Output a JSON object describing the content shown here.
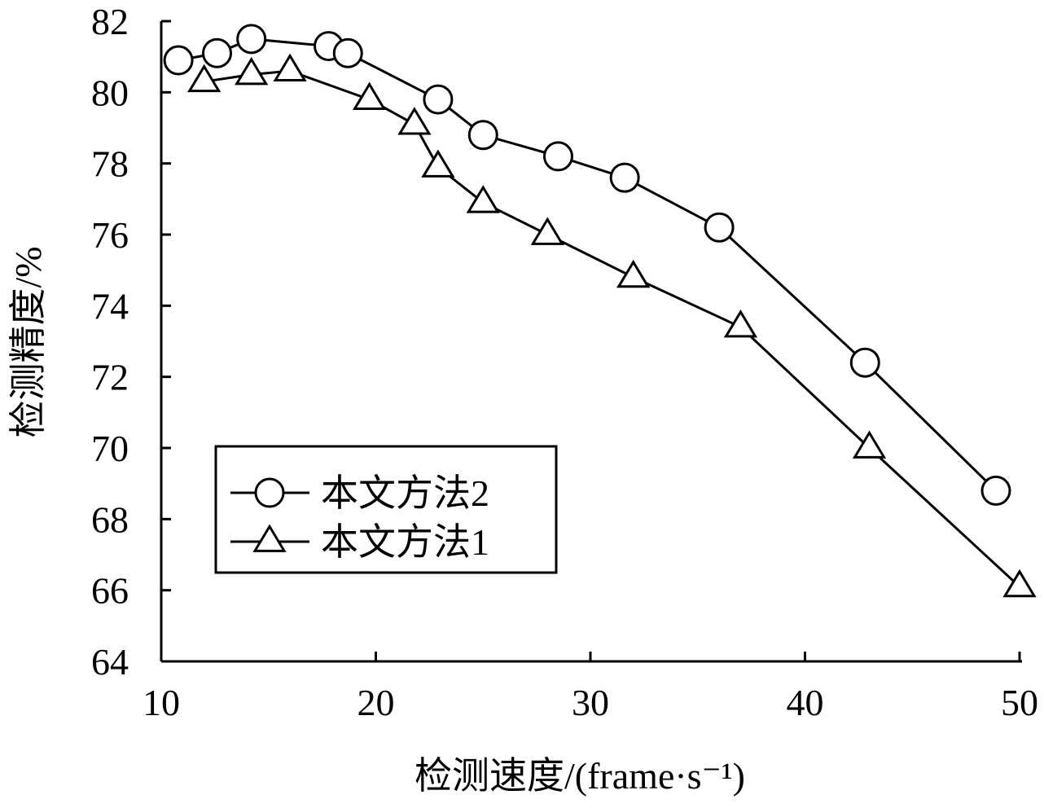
{
  "chart_data": {
    "type": "line",
    "title": "",
    "xlabel": "检测速度/(frame·s⁻¹)",
    "ylabel": "检测精度/%",
    "xlim": [
      10,
      50
    ],
    "ylim": [
      64,
      82
    ],
    "xticks": [
      "10",
      "20",
      "30",
      "40",
      "50"
    ],
    "yticks": [
      "64",
      "66",
      "68",
      "70",
      "72",
      "74",
      "76",
      "78",
      "80",
      "82"
    ],
    "grid": false,
    "legend_position": "center-left",
    "series": [
      {
        "name": "本文方法2",
        "marker": "circle",
        "color": "#000000",
        "points": [
          [
            10.8,
            80.9
          ],
          [
            12.6,
            81.1
          ],
          [
            14.2,
            81.5
          ],
          [
            17.8,
            81.3
          ],
          [
            18.7,
            81.1
          ],
          [
            22.9,
            79.8
          ],
          [
            25.0,
            78.8
          ],
          [
            28.5,
            78.2
          ],
          [
            31.6,
            77.6
          ],
          [
            36.0,
            76.2
          ],
          [
            42.8,
            72.4
          ],
          [
            48.9,
            68.8
          ]
        ]
      },
      {
        "name": "本文方法1",
        "marker": "triangle",
        "color": "#000000",
        "points": [
          [
            12.0,
            80.3
          ],
          [
            14.2,
            80.5
          ],
          [
            16.0,
            80.6
          ],
          [
            19.7,
            79.8
          ],
          [
            21.8,
            79.1
          ],
          [
            22.9,
            77.9
          ],
          [
            25.0,
            76.9
          ],
          [
            28.0,
            76.0
          ],
          [
            32.0,
            74.8
          ],
          [
            37.0,
            73.4
          ],
          [
            43.0,
            70.0
          ],
          [
            50.0,
            66.1
          ]
        ]
      }
    ]
  }
}
